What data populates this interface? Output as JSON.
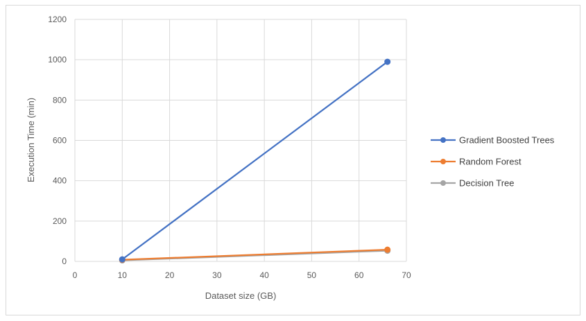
{
  "chart_data": {
    "type": "line",
    "title": "",
    "xlabel": "Dataset size (GB)",
    "ylabel": "Execution Time (min)",
    "xlim": [
      0,
      70
    ],
    "ylim": [
      0,
      1200
    ],
    "x_ticks": [
      0,
      10,
      20,
      30,
      40,
      50,
      60,
      70
    ],
    "y_ticks": [
      0,
      200,
      400,
      600,
      800,
      1000,
      1200
    ],
    "grid": true,
    "legend_position": "right",
    "series": [
      {
        "name": "Gradient Boosted Trees",
        "color": "#4472C4",
        "x": [
          10,
          66
        ],
        "y": [
          10,
          990
        ]
      },
      {
        "name": "Random Forest",
        "color": "#ED7D31",
        "x": [
          10,
          66
        ],
        "y": [
          8,
          58
        ]
      },
      {
        "name": "Decision Tree",
        "color": "#A5A5A5",
        "x": [
          10,
          66
        ],
        "y": [
          5,
          53
        ]
      }
    ]
  }
}
